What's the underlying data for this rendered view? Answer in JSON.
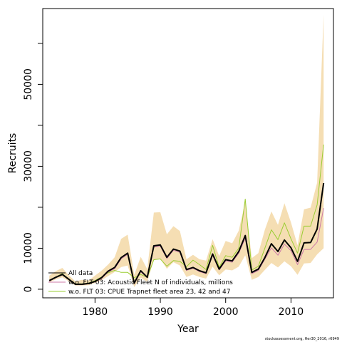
{
  "chart_data": {
    "type": "line",
    "xlabel": "Year",
    "ylabel": "Recruits",
    "xlim": [
      1972,
      2016.5
    ],
    "ylim": [
      -2100,
      68500
    ],
    "x_ticks": [
      1980,
      1990,
      2000,
      2010
    ],
    "y_ticks_labeled": [
      0,
      10000,
      30000,
      50000
    ],
    "y_ticks_minor": [
      20000,
      40000,
      60000
    ],
    "x": [
      1973,
      1974,
      1975,
      1976,
      1977,
      1978,
      1979,
      1980,
      1981,
      1982,
      1983,
      1984,
      1985,
      1986,
      1987,
      1988,
      1989,
      1990,
      1991,
      1992,
      1993,
      1994,
      1995,
      1996,
      1997,
      1998,
      1999,
      2000,
      2001,
      2002,
      2003,
      2004,
      2005,
      2006,
      2007,
      2008,
      2009,
      2010,
      2011,
      2012,
      2013,
      2014,
      2015
    ],
    "band": {
      "upper": [
        3300,
        4400,
        5200,
        3400,
        1900,
        2300,
        2100,
        3300,
        4500,
        6000,
        7800,
        12300,
        13300,
        3500,
        7900,
        4900,
        18700,
        18800,
        13400,
        15400,
        14200,
        7300,
        8400,
        7300,
        7000,
        12200,
        8100,
        11800,
        11200,
        14300,
        21400,
        7600,
        8800,
        14500,
        19000,
        15700,
        21000,
        16300,
        10700,
        19500,
        19900,
        26000,
        67000
      ],
      "lower": [
        1700,
        2400,
        2900,
        1900,
        900,
        900,
        1000,
        1500,
        2200,
        3200,
        4200,
        5400,
        5800,
        500,
        2800,
        1800,
        7200,
        7400,
        5000,
        6600,
        5800,
        3000,
        3600,
        3000,
        2600,
        5500,
        3400,
        4800,
        4600,
        5500,
        8300,
        2300,
        3000,
        4700,
        6400,
        5300,
        6800,
        5600,
        3500,
        6300,
        6400,
        8500,
        10000
      ]
    },
    "series": [
      {
        "name": "All data",
        "color": "#000000",
        "values": [
          2100,
          2900,
          3600,
          2400,
          1200,
          1200,
          1400,
          1900,
          2800,
          4400,
          5300,
          7700,
          8800,
          1500,
          4500,
          2900,
          10600,
          10800,
          7800,
          9800,
          9300,
          4800,
          5300,
          4500,
          4000,
          8600,
          4900,
          7200,
          6900,
          9200,
          13100,
          4100,
          4900,
          7700,
          11100,
          9200,
          12000,
          10100,
          6800,
          11300,
          11400,
          14700,
          25900
        ]
      },
      {
        "name": "w.o. FLT 03: Acoustic Fleet   N of individuals, millions",
        "color": "#cc79a7",
        "values": [
          2000,
          2800,
          3500,
          2300,
          1100,
          1100,
          1300,
          1800,
          2600,
          4200,
          5000,
          7400,
          8500,
          1300,
          4300,
          2800,
          10300,
          10500,
          7500,
          9500,
          9000,
          4600,
          5100,
          4300,
          3800,
          8300,
          4700,
          6900,
          6600,
          8800,
          12400,
          3800,
          4600,
          7300,
          10100,
          8300,
          11000,
          9400,
          6000,
          9700,
          9700,
          11500,
          19800
        ]
      },
      {
        "name": "w.o. FLT 03: CPUE Trapnet fleet area 23, 42 and 47",
        "color": "#9acd32",
        "values": [
          2200,
          3000,
          3800,
          2500,
          1300,
          1300,
          1500,
          2100,
          3000,
          4000,
          4600,
          4100,
          4100,
          2800,
          3600,
          2900,
          7200,
          7400,
          5600,
          7000,
          6800,
          5500,
          7100,
          6000,
          4800,
          10700,
          5300,
          8200,
          7800,
          10000,
          22000,
          4700,
          5600,
          10000,
          14500,
          12100,
          16200,
          12300,
          8800,
          15400,
          15400,
          20600,
          35300
        ]
      }
    ],
    "band_color": "#f5deb3",
    "legend_position": "bottom-left",
    "credit": "stockassessment.org, Her30_2016, r6949"
  }
}
